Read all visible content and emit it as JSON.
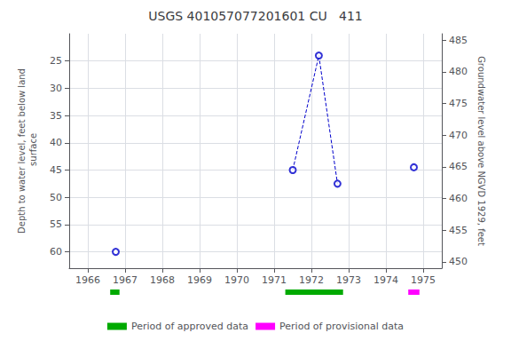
{
  "chart_data": {
    "type": "scatter",
    "title": "USGS 401057077201601 CU   411",
    "y_label": "Depth to water level, feet below land\n surface",
    "y2_label": "Groundwater level above NGVD 1929, feet",
    "xlim": [
      1965.5,
      1975.5
    ],
    "xticks": [
      1966,
      1967,
      1968,
      1969,
      1970,
      1971,
      1972,
      1973,
      1974,
      1975
    ],
    "ylim": [
      63,
      20
    ],
    "yticks": [
      25,
      30,
      35,
      40,
      45,
      50,
      55,
      60
    ],
    "y2lim": [
      449,
      486
    ],
    "y2ticks": [
      485,
      480,
      475,
      470,
      465,
      460,
      455,
      450
    ],
    "grid": true,
    "series": [
      {
        "type": "scatter",
        "marker": "open_circle",
        "color": "#0000CC",
        "x": [
          1966.75,
          1971.5,
          1972.2,
          1972.7,
          1974.75
        ],
        "values": [
          60.0,
          45.0,
          24.0,
          47.5,
          44.5
        ]
      },
      {
        "type": "line",
        "line_style": "dashed",
        "color": "#0000CC",
        "x": [
          1971.5,
          1972.2,
          1972.7
        ],
        "values": [
          45.0,
          24.0,
          47.5
        ]
      }
    ],
    "periods": [
      {
        "name": "Period of approved data",
        "color": "#00AA00",
        "ranges": [
          [
            1966.6,
            1966.85
          ],
          [
            1971.3,
            1972.85
          ]
        ]
      },
      {
        "name": "Period of provisional data",
        "color": "#FF00FF",
        "ranges": [
          [
            1974.6,
            1974.9
          ]
        ]
      }
    ]
  }
}
